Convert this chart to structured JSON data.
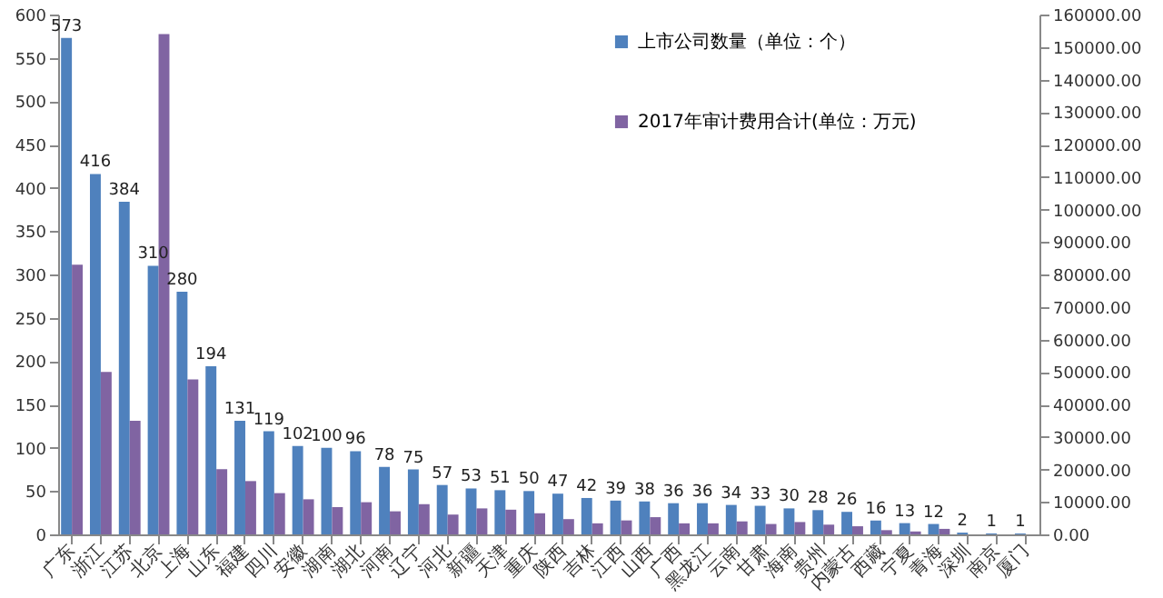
{
  "chart_data": {
    "type": "bar",
    "categories": [
      "广东",
      "浙江",
      "江苏",
      "北京",
      "上海",
      "山东",
      "福建",
      "四川",
      "安徽",
      "湖南",
      "湖北",
      "河南",
      "辽宁",
      "河北",
      "新疆",
      "天津",
      "重庆",
      "陕西",
      "吉林",
      "江西",
      "山西",
      "广西",
      "黑龙江",
      "云南",
      "甘肃",
      "海南",
      "贵州",
      "内蒙古",
      "西藏",
      "宁夏",
      "青海",
      "深圳",
      "南京",
      "厦门"
    ],
    "series": [
      {
        "name": "上市公司数量（单位：个）",
        "color": "#4f81bd",
        "values": [
          573,
          416,
          384,
          310,
          280,
          194,
          131,
          119,
          102,
          100,
          96,
          78,
          75,
          57,
          53,
          51,
          50,
          47,
          42,
          39,
          38,
          36,
          36,
          34,
          33,
          30,
          28,
          26,
          16,
          13,
          12,
          2,
          1,
          1
        ],
        "value_labels": [
          "573",
          "416",
          "384",
          "310",
          "280",
          "194",
          "131",
          "119",
          "102",
          "100",
          "96",
          "78",
          "75",
          "57",
          "53",
          "51",
          "50",
          "47",
          "42",
          "39",
          "38",
          "36",
          "36",
          "34",
          "33",
          "30",
          "28",
          "26",
          "16",
          "13",
          "12",
          "2",
          "1",
          "1"
        ]
      },
      {
        "name": "2017年审计费用合计(单位：万元)",
        "color": "#8064a2",
        "axis": "y2",
        "values": [
          83000,
          50000,
          35000,
          154000,
          47700,
          20100,
          16400,
          12700,
          10800,
          8400,
          9900,
          7100,
          9300,
          6100,
          8000,
          7600,
          6500,
          4700,
          3400,
          4300,
          5300,
          3400,
          3400,
          4000,
          3200,
          3800,
          3000,
          2500,
          1300,
          900,
          1700,
          0,
          0,
          0
        ]
      }
    ],
    "ylim": [
      0,
      600
    ],
    "yticks": [
      0,
      50,
      100,
      150,
      200,
      250,
      300,
      350,
      400,
      450,
      500,
      550,
      600
    ],
    "y2lim": [
      0,
      160000
    ],
    "y2ticks": [
      {
        "value": 0,
        "label": "0.00"
      },
      {
        "value": 10000,
        "label": "10000.00"
      },
      {
        "value": 20000,
        "label": "20000.00"
      },
      {
        "value": 30000,
        "label": "30000.00"
      },
      {
        "value": 40000,
        "label": "40000.00"
      },
      {
        "value": 50000,
        "label": "50000.00"
      },
      {
        "value": 60000,
        "label": "60000.00"
      },
      {
        "value": 70000,
        "label": "70000.00"
      },
      {
        "value": 80000,
        "label": "80000.00"
      },
      {
        "value": 90000,
        "label": "90000.00"
      },
      {
        "value": 100000,
        "label": "100000.00"
      },
      {
        "value": 110000,
        "label": "110000.00"
      },
      {
        "value": 120000,
        "label": "120000.00"
      },
      {
        "value": 130000,
        "label": "130000.00"
      },
      {
        "value": 140000,
        "label": "140000.00"
      },
      {
        "value": 150000,
        "label": "150000.00"
      },
      {
        "value": 160000,
        "label": "160000.00"
      }
    ],
    "legend": "top right",
    "grid": false
  }
}
